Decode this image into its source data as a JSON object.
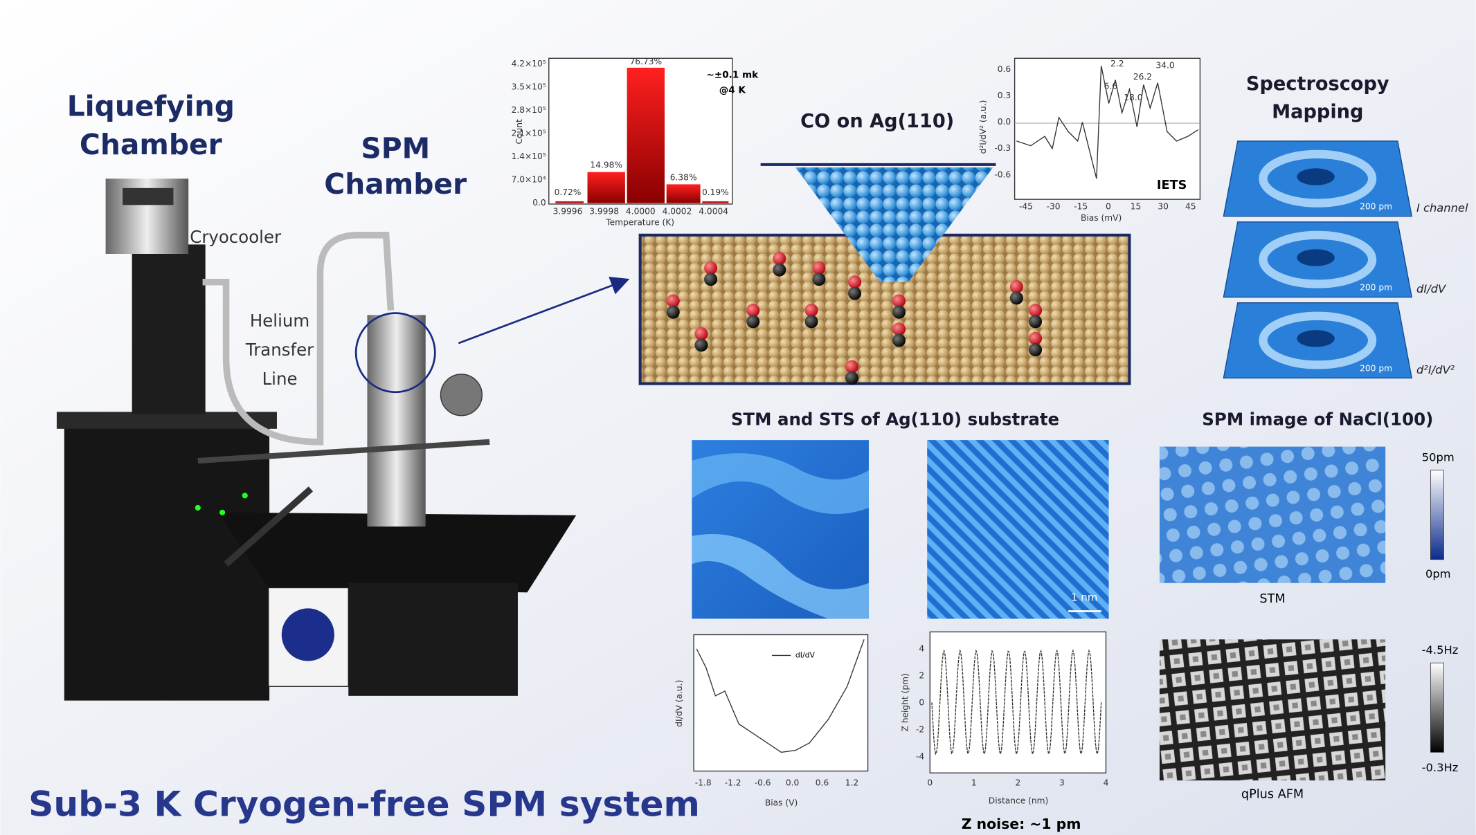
{
  "machine": {
    "liquefying_chamber": [
      "Liquefying",
      "Chamber"
    ],
    "spm_chamber": [
      "SPM",
      "Chamber"
    ],
    "cryocooler": "Cryocooler",
    "helium_transfer_line": [
      "Helium",
      "Transfer",
      "Line"
    ]
  },
  "title": "Sub-3 K Cryogen-free SPM system",
  "histogram": {
    "y_label": "Count",
    "x_label": "Temperature (K)",
    "y_ticks": [
      "4.2×10⁵",
      "3.5×10⁵",
      "2.8×10⁵",
      "2.1×10⁵",
      "1.4×10⁵",
      "7.0×10⁴",
      "0.0"
    ],
    "x_ticks": [
      "3.9996",
      "3.9998",
      "4.0000",
      "4.0002",
      "4.0004"
    ],
    "bar_labels": [
      "0.72%",
      "14.98%",
      "76.73%",
      "6.38%",
      "0.19%"
    ],
    "annotation": [
      "~±0.1 mk",
      "@4 K"
    ]
  },
  "co_panel": {
    "title": "CO on Ag(110)"
  },
  "iets": {
    "label": "IETS",
    "y_label": "d²I/dV² (a.u.)",
    "x_label": "Bias (mV)",
    "y_ticks": [
      "0.6",
      "0.3",
      "0.0",
      "-0.3",
      "-0.6"
    ],
    "x_ticks": [
      "-45",
      "-30",
      "-15",
      "0",
      "15",
      "30",
      "45"
    ],
    "peaks": [
      "2.2",
      "6.6",
      "18.0",
      "26.2",
      "34.0"
    ]
  },
  "mapping": {
    "title": [
      "Spectroscopy",
      "Mapping"
    ],
    "channels": [
      "I channel",
      "dI/dV",
      "d²I/dV²"
    ],
    "scale_bar": "200 pm"
  },
  "ag_substrate": {
    "title": "STM and STS of Ag(110) substrate",
    "scale_bar": "1 nm",
    "sts": {
      "legend": "dI/dV",
      "y_label": "dI/dV (a.u.)",
      "x_label": "Bias (V)",
      "x_ticks": [
        "-1.8",
        "-1.2",
        "-0.6",
        "0.0",
        "0.6",
        "1.2"
      ]
    },
    "z_profile": {
      "y_label": "Z height (pm)",
      "x_label": "Distance (nm)",
      "y_ticks": [
        "4",
        "2",
        "0",
        "-2",
        "-4"
      ],
      "x_ticks": [
        "0",
        "1",
        "2",
        "3",
        "4"
      ],
      "caption": "Z noise: ~1 pm"
    }
  },
  "nacl": {
    "title": "SPM image of NaCl(100)",
    "stm": {
      "label": "STM",
      "colorbar": [
        "50pm",
        "0pm"
      ]
    },
    "afm": {
      "label": "qPlus AFM",
      "colorbar": [
        "-4.5Hz",
        "-0.3Hz"
      ]
    }
  }
}
